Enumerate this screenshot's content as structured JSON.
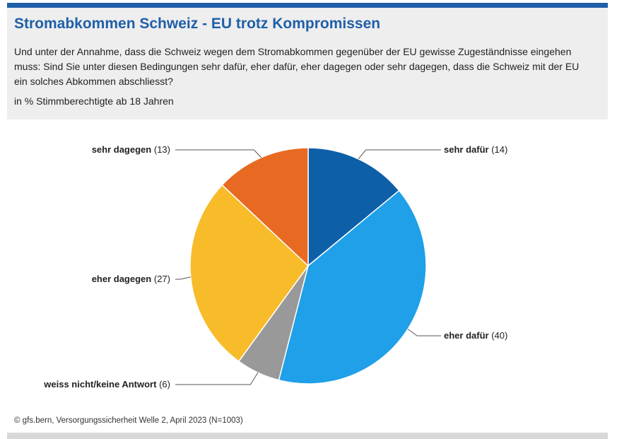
{
  "header": {
    "title": "Stromabkommen Schweiz - EU trotz Kompromissen",
    "question": "Und unter der Annahme, dass die Schweiz wegen dem Stromabkommen gegenüber der EU gewisse Zugeständnisse eingehen muss: Sind Sie unter diesen Bedingungen sehr dafür, eher dafür, eher dagegen oder sehr dagegen, dass die Schweiz mit der EU ein solches Abkommen abschliesst?",
    "unit": "in % Stimmberechtigte ab 18 Jahren"
  },
  "footer": {
    "source": "© gfs.bern, Versorgungssicherheit Welle 2, April 2023 (N=1003)"
  },
  "chart_data": {
    "type": "pie",
    "title": "Stromabkommen Schweiz - EU trotz Kompromissen",
    "unit": "%",
    "slices": [
      {
        "label": "sehr dafür",
        "value": 14,
        "color": "#0d5fa8"
      },
      {
        "label": "eher dafür",
        "value": 40,
        "color": "#1fa0e8"
      },
      {
        "label": "weiss nicht/keine Antwort",
        "value": 6,
        "color": "#999999"
      },
      {
        "label": "eher dagegen",
        "value": 27,
        "color": "#f8bb2a"
      },
      {
        "label": "sehr dagegen",
        "value": 13,
        "color": "#e86a22"
      }
    ],
    "direction": "clockwise",
    "start": "12 o'clock"
  }
}
